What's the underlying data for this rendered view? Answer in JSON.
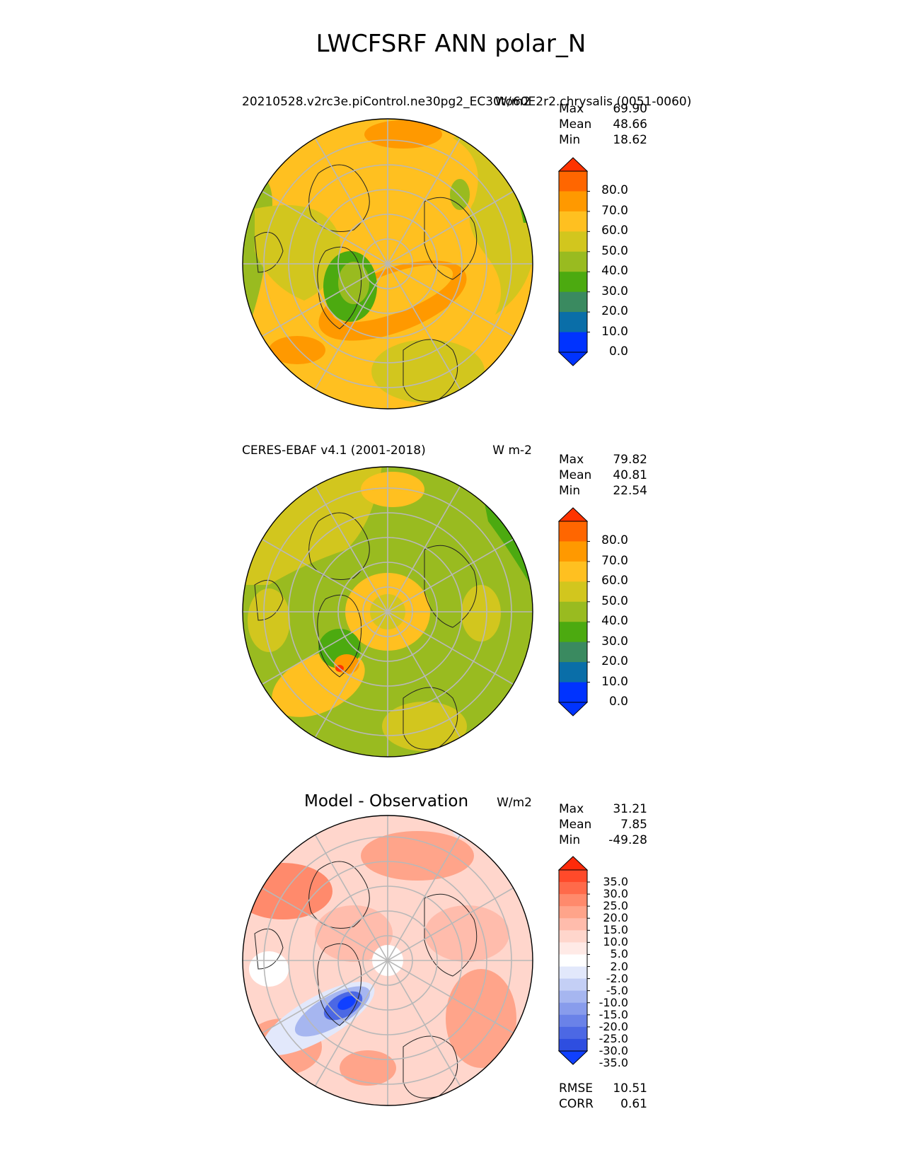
{
  "title": "LWCFSRF ANN polar_N",
  "panels": [
    {
      "title_left": "20210528.v2rc3e.piControl.ne30pg2_EC30to60E2r2.chrysalis (0051-0060)",
      "title_right": "W/m2",
      "stats": [
        {
          "label": "Max",
          "value": "69.90"
        },
        {
          "label": "Mean",
          "value": "48.66"
        },
        {
          "label": "Min",
          "value": "18.62"
        }
      ],
      "colorbar": {
        "labels": [
          "80.0",
          "70.0",
          "60.0",
          "50.0",
          "40.0",
          "30.0",
          "20.0",
          "10.0",
          "0.0"
        ],
        "colors": [
          "#ff3300",
          "#ff6600",
          "#ff9900",
          "#ffc020",
          "#d2c61e",
          "#99bb20",
          "#4caa10",
          "#3a8a60",
          "#0a6ea8",
          "#0033ff",
          "#0033ff"
        ]
      }
    },
    {
      "title_left": "CERES-EBAF v4.1 (2001-2018)",
      "title_right": "W m-2",
      "stats": [
        {
          "label": "Max",
          "value": "79.82"
        },
        {
          "label": "Mean",
          "value": "40.81"
        },
        {
          "label": "Min",
          "value": "22.54"
        }
      ],
      "colorbar": {
        "labels": [
          "80.0",
          "70.0",
          "60.0",
          "50.0",
          "40.0",
          "30.0",
          "20.0",
          "10.0",
          "0.0"
        ],
        "colors": [
          "#ff3300",
          "#ff6600",
          "#ff9900",
          "#ffc020",
          "#d2c61e",
          "#99bb20",
          "#4caa10",
          "#3a8a60",
          "#0a6ea8",
          "#0033ff",
          "#0033ff"
        ]
      }
    },
    {
      "title_center": "Model - Observation",
      "title_right": "W/m2",
      "stats": [
        {
          "label": "Max",
          "value": "31.21"
        },
        {
          "label": "Mean",
          "value": "7.85"
        },
        {
          "label": "Min",
          "value": "-49.28"
        }
      ],
      "colorbar": {
        "labels": [
          "35.0",
          "30.0",
          "25.0",
          "20.0",
          "15.0",
          "10.0",
          "5.0",
          "2.0",
          "-2.0",
          "-5.0",
          "-10.0",
          "-15.0",
          "-20.0",
          "-25.0",
          "-30.0",
          "-35.0"
        ],
        "colors": [
          "#ff2a0a",
          "#ff4a2a",
          "#ff6a4a",
          "#ff8a6c",
          "#ffa48a",
          "#ffbcac",
          "#ffd6cc",
          "#ffeae6",
          "#ffffff",
          "#e2e8fb",
          "#c4cff5",
          "#a6b6f0",
          "#889cec",
          "#6a82e8",
          "#4c68e4",
          "#2e4ee0",
          "#1040ff"
        ]
      },
      "metrics": [
        {
          "label": "RMSE",
          "value": "10.51"
        },
        {
          "label": "CORR",
          "value": "0.61"
        }
      ]
    }
  ]
}
